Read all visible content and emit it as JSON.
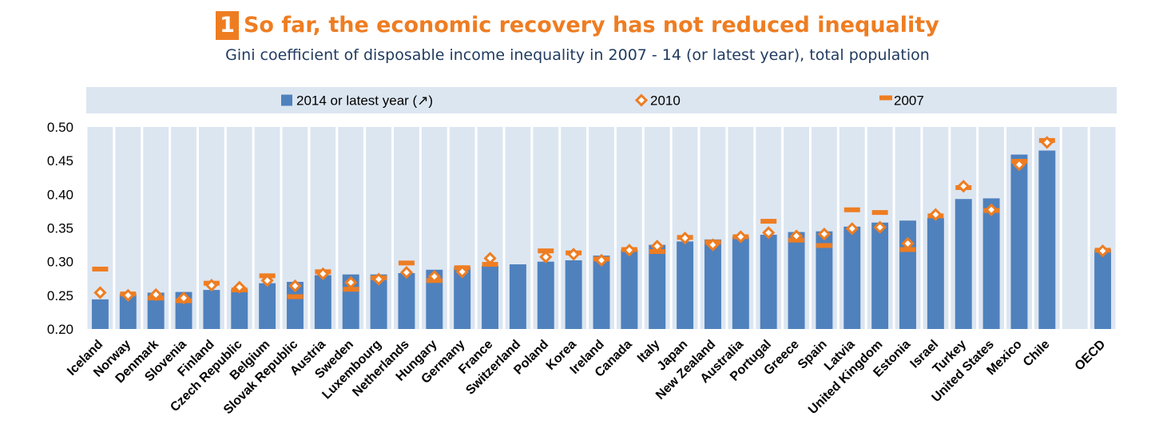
{
  "header": {
    "number": "1",
    "title": "So far, the economic recovery has not reduced inequality",
    "subtitle": "Gini coefficient of disposable income inequality in 2007 - 14 (or latest year), total population"
  },
  "colors": {
    "bar": "#4f81bd",
    "marker": "#ee7d22",
    "plot_background": "#dce6f1",
    "legend_background": "#dce6f1",
    "title": "#ee7d22",
    "subtitle": "#1f3a5f"
  },
  "chart_data": {
    "type": "bar",
    "legend_position": "top",
    "grid": false,
    "ylim": [
      0.2,
      0.5
    ],
    "yticks": [
      "0.50",
      "0.45",
      "0.40",
      "0.35",
      "0.30",
      "0.25",
      "0.20"
    ],
    "ytick_values": [
      0.5,
      0.45,
      0.4,
      0.35,
      0.3,
      0.25,
      0.2
    ],
    "categories": [
      "Iceland",
      "Norway",
      "Denmark",
      "Slovenia",
      "Finland",
      "Czech Republic",
      "Belgium",
      "Slovak Republic",
      "Austria",
      "Sweden",
      "Luxembourg",
      "Netherlands",
      "Hungary",
      "Germany",
      "France",
      "Switzerland",
      "Poland",
      "Korea",
      "Ireland",
      "Canada",
      "Italy",
      "Japan",
      "New Zealand",
      "Australia",
      "Portugal",
      "Greece",
      "Spain",
      "Latvia",
      "United Kingdom",
      "Estonia",
      "Israel",
      "Turkey",
      "United States",
      "Mexico",
      "Chile",
      "",
      "OECD"
    ],
    "series": [
      {
        "name": "2014 or latest year (↗)",
        "kind": "bar",
        "values": [
          0.244,
          0.252,
          0.254,
          0.255,
          0.258,
          0.259,
          0.268,
          0.27,
          0.28,
          0.281,
          0.281,
          0.283,
          0.288,
          0.292,
          0.294,
          0.296,
          0.3,
          0.302,
          0.309,
          0.318,
          0.325,
          0.33,
          0.333,
          0.337,
          0.34,
          0.344,
          0.345,
          0.352,
          0.358,
          0.361,
          0.365,
          0.393,
          0.394,
          0.459,
          0.465,
          null,
          0.318
        ]
      },
      {
        "name": "2010",
        "kind": "diamond",
        "values": [
          0.254,
          0.25,
          0.251,
          0.246,
          0.265,
          0.262,
          0.272,
          0.264,
          0.282,
          0.269,
          0.274,
          0.284,
          0.278,
          0.285,
          0.305,
          null,
          0.307,
          0.311,
          0.302,
          0.317,
          0.323,
          0.335,
          0.325,
          0.337,
          0.343,
          0.338,
          0.341,
          0.349,
          0.351,
          0.327,
          0.37,
          0.412,
          0.377,
          0.444,
          0.477,
          null,
          0.316
        ]
      },
      {
        "name": "2007",
        "kind": "dash",
        "values": [
          0.289,
          0.252,
          0.246,
          0.242,
          0.268,
          0.258,
          0.279,
          0.248,
          0.285,
          0.259,
          0.276,
          0.298,
          0.272,
          0.291,
          0.296,
          null,
          0.316,
          0.313,
          0.304,
          0.318,
          0.315,
          0.336,
          0.329,
          0.337,
          0.36,
          0.332,
          0.324,
          0.377,
          0.373,
          0.318,
          0.368,
          0.41,
          0.376,
          0.449,
          0.48,
          null,
          0.317
        ]
      }
    ]
  }
}
